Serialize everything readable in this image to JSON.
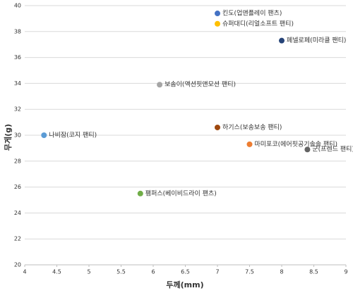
{
  "chart_data": {
    "type": "scatter",
    "x_label": "두께(mm)",
    "y_label": "무게(g)",
    "xlim": [
      4,
      9
    ],
    "xticks": [
      4,
      4.5,
      5,
      5.5,
      6,
      6.5,
      7,
      7.5,
      8,
      8.5,
      9
    ],
    "ylim": [
      20,
      40
    ],
    "yticks": [
      20,
      22,
      24,
      26,
      28,
      30,
      32,
      34,
      36,
      38,
      40
    ],
    "grid": true,
    "points": [
      {
        "label": "킨도(업앤플레이 팬츠)",
        "x": 7,
        "y": 39.4,
        "color": "#4472c4"
      },
      {
        "label": "슈퍼대디(리얼소프트 팬티)",
        "x": 7,
        "y": 38.6,
        "color": "#ffc000"
      },
      {
        "label": "페넬로페(미라클 팬티)",
        "x": 8,
        "y": 37.3,
        "color": "#264478"
      },
      {
        "label": "보솜이(액션핏앤모션 팬티)",
        "x": 6.1,
        "y": 33.9,
        "color": "#a5a5a5"
      },
      {
        "label": "나비잠(코지 팬티)",
        "x": 4.3,
        "y": 30.0,
        "color": "#5b9bd5"
      },
      {
        "label": "하기스(보송보송 팬티)",
        "x": 7,
        "y": 30.6,
        "color": "#9e480e"
      },
      {
        "label": "마미포코(에어핏공기솔솔 팬티)",
        "x": 7.5,
        "y": 29.3,
        "color": "#ed7d31"
      },
      {
        "label": "군(프렌드 팬티)",
        "x": 8.4,
        "y": 28.9,
        "color": "#636363"
      },
      {
        "label": "팸퍼스(베이비드라이 팬츠)",
        "x": 5.8,
        "y": 25.5,
        "color": "#70ad47"
      }
    ]
  }
}
